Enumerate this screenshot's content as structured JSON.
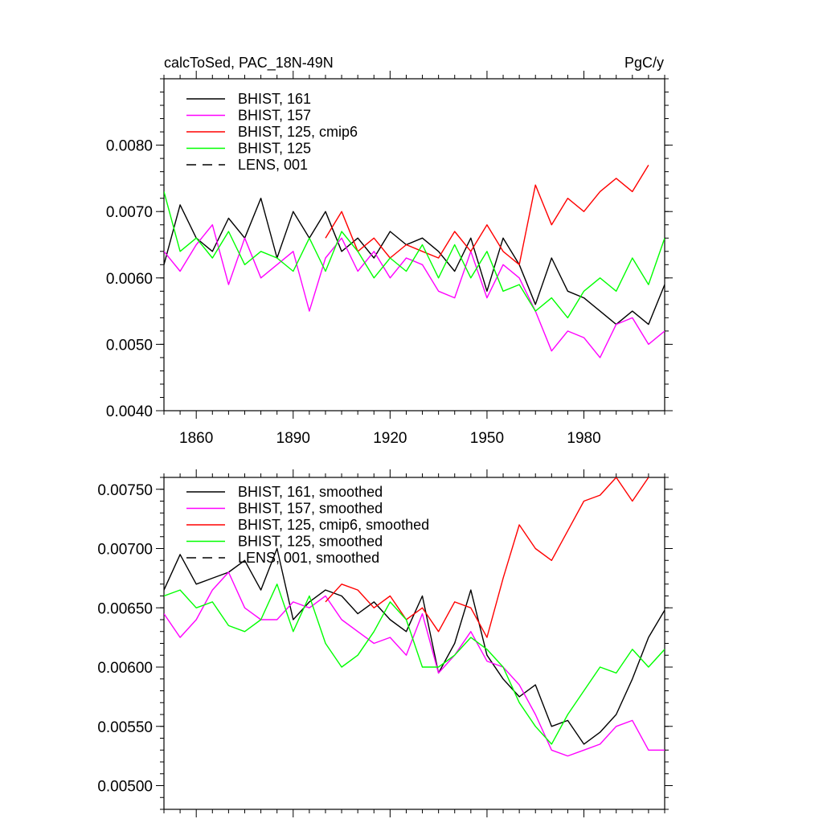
{
  "figure": {
    "title_left": "calcToSed, PAC_18N-49N",
    "title_right": "PgC/y"
  },
  "chart_data": [
    {
      "type": "line",
      "title": "calcToSed, PAC_18N-49N",
      "units": "PgC/y",
      "xlabel": "",
      "ylabel": "",
      "xlim": [
        1850,
        2005
      ],
      "ylim": [
        0.004,
        0.009
      ],
      "xticks": [
        1860,
        1890,
        1920,
        1950,
        1980
      ],
      "xtick_labels": [
        "1860",
        "1890",
        "1920",
        "1950",
        "1980"
      ],
      "yticks": [
        0.004,
        0.005,
        0.006,
        0.007,
        0.008
      ],
      "ytick_labels": [
        "0.0040",
        "0.0050",
        "0.0060",
        "0.0070",
        "0.0080"
      ],
      "legend_position": "top-left",
      "series": [
        {
          "name": "BHIST, 161",
          "color": "#000000",
          "dash": "solid",
          "x_start": 1850,
          "x_step": 5,
          "values": [
            0.0062,
            0.0071,
            0.0066,
            0.0064,
            0.0069,
            0.0066,
            0.0072,
            0.0063,
            0.007,
            0.0066,
            0.007,
            0.0064,
            0.0066,
            0.0063,
            0.0067,
            0.0065,
            0.0066,
            0.0064,
            0.0061,
            0.0066,
            0.0058,
            0.0066,
            0.0062,
            0.0056,
            0.0063,
            0.0058,
            0.0057,
            0.0055,
            0.0053,
            0.0055,
            0.0053,
            0.0059
          ]
        },
        {
          "name": "BHIST, 157",
          "color": "#ff00ff",
          "dash": "solid",
          "x_start": 1850,
          "x_step": 5,
          "values": [
            0.0064,
            0.0061,
            0.0065,
            0.0068,
            0.0059,
            0.0066,
            0.006,
            0.0062,
            0.0064,
            0.0055,
            0.0063,
            0.0066,
            0.0061,
            0.0064,
            0.006,
            0.0063,
            0.0062,
            0.0058,
            0.0057,
            0.0064,
            0.0057,
            0.0062,
            0.006,
            0.0055,
            0.0049,
            0.0052,
            0.0051,
            0.0048,
            0.0053,
            0.0054,
            0.005,
            0.0052
          ]
        },
        {
          "name": "BHIST, 125, cmip6",
          "color": "#ff0000",
          "dash": "solid",
          "x_start": 1900,
          "x_step": 5,
          "values": [
            0.0066,
            0.007,
            0.0064,
            0.0066,
            0.0063,
            0.0065,
            0.0064,
            0.0063,
            0.0067,
            0.0064,
            0.0068,
            0.0064,
            0.0062,
            0.0074,
            0.0068,
            0.0072,
            0.007,
            0.0073,
            0.0075,
            0.0073,
            0.0077
          ]
        },
        {
          "name": "BHIST, 125",
          "color": "#00ff00",
          "dash": "solid",
          "x_start": 1850,
          "x_step": 5,
          "values": [
            0.0073,
            0.0064,
            0.0066,
            0.0063,
            0.0067,
            0.0062,
            0.0064,
            0.0063,
            0.0061,
            0.0066,
            0.0061,
            0.0067,
            0.0064,
            0.006,
            0.0063,
            0.0061,
            0.0065,
            0.006,
            0.0065,
            0.006,
            0.0064,
            0.0058,
            0.0059,
            0.0055,
            0.0057,
            0.0054,
            0.0058,
            0.006,
            0.0058,
            0.0063,
            0.0059,
            0.0066
          ]
        },
        {
          "name": "LENS, 001",
          "color": "#000000",
          "dash": "dashed",
          "values": []
        }
      ]
    },
    {
      "type": "line",
      "title": "",
      "xlabel": "",
      "ylabel": "",
      "xlim": [
        1850,
        2005
      ],
      "ylim": [
        0.0048,
        0.0076
      ],
      "xticks": [
        1860,
        1890,
        1920,
        1950,
        1980
      ],
      "xtick_labels": [],
      "yticks": [
        0.005,
        0.0055,
        0.006,
        0.0065,
        0.007,
        0.0075
      ],
      "ytick_labels": [
        "0.00500",
        "0.00550",
        "0.00600",
        "0.00650",
        "0.00700",
        "0.00750"
      ],
      "legend_position": "top-left",
      "series": [
        {
          "name": "BHIST, 161, smoothed",
          "color": "#000000",
          "dash": "solid",
          "x_start": 1850,
          "x_step": 5,
          "values": [
            0.00665,
            0.00695,
            0.0067,
            0.00675,
            0.0068,
            0.0069,
            0.00665,
            0.007,
            0.0064,
            0.00655,
            0.00665,
            0.0066,
            0.00645,
            0.00655,
            0.0064,
            0.0063,
            0.0066,
            0.00595,
            0.0062,
            0.00665,
            0.0061,
            0.0059,
            0.00575,
            0.00585,
            0.0055,
            0.00555,
            0.00535,
            0.00545,
            0.0056,
            0.0059,
            0.00625,
            0.00648
          ]
        },
        {
          "name": "BHIST, 157, smoothed",
          "color": "#ff00ff",
          "dash": "solid",
          "x_start": 1850,
          "x_step": 5,
          "values": [
            0.00645,
            0.00625,
            0.0064,
            0.00665,
            0.0068,
            0.0065,
            0.0064,
            0.0064,
            0.00655,
            0.0065,
            0.0066,
            0.0064,
            0.0063,
            0.0062,
            0.00625,
            0.0061,
            0.00645,
            0.00595,
            0.0061,
            0.0063,
            0.00605,
            0.006,
            0.00585,
            0.0056,
            0.0053,
            0.00525,
            0.0053,
            0.00535,
            0.0055,
            0.00555,
            0.0053,
            0.0053
          ]
        },
        {
          "name": "BHIST, 125, cmip6, smoothed",
          "color": "#ff0000",
          "dash": "solid",
          "x_start": 1900,
          "x_step": 5,
          "values": [
            0.00655,
            0.0067,
            0.00665,
            0.0065,
            0.0066,
            0.0064,
            0.0065,
            0.0063,
            0.00655,
            0.0065,
            0.00625,
            0.00675,
            0.0072,
            0.007,
            0.0069,
            0.00715,
            0.0074,
            0.00745,
            0.0076,
            0.0074,
            0.0076
          ]
        },
        {
          "name": "BHIST, 125, smoothed",
          "color": "#00ff00",
          "dash": "solid",
          "x_start": 1850,
          "x_step": 5,
          "values": [
            0.0066,
            0.00665,
            0.0065,
            0.00655,
            0.00635,
            0.0063,
            0.0064,
            0.0067,
            0.0063,
            0.0066,
            0.0062,
            0.006,
            0.0061,
            0.0063,
            0.00655,
            0.0064,
            0.006,
            0.006,
            0.0061,
            0.00625,
            0.00615,
            0.006,
            0.0057,
            0.0055,
            0.00535,
            0.0056,
            0.0058,
            0.006,
            0.00595,
            0.00615,
            0.006,
            0.00615
          ]
        },
        {
          "name": "LENS, 001, smoothed",
          "color": "#000000",
          "dash": "dashed",
          "values": []
        }
      ]
    }
  ]
}
